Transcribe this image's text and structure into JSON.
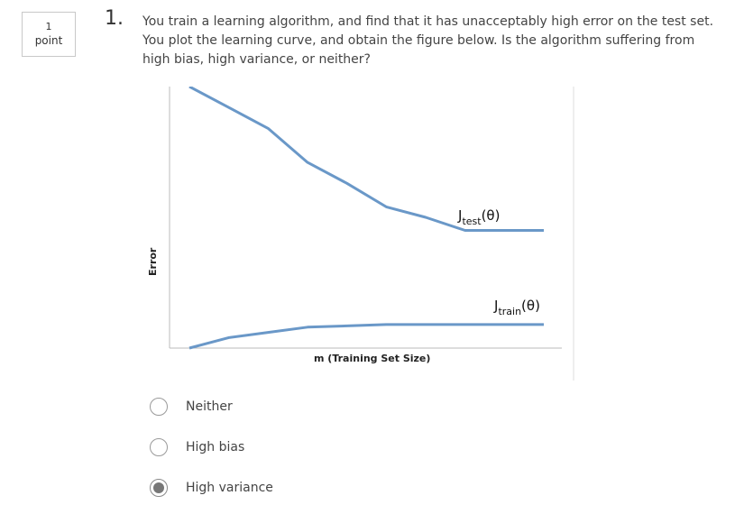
{
  "points": {
    "value": "1",
    "label": "point"
  },
  "question": {
    "number": "1.",
    "text": "You train a learning algorithm, and find that it has unacceptably high error on the test set. You plot the learning curve, and obtain the figure below. Is the algorithm suffering from high bias, high variance, or neither?"
  },
  "figure": {
    "ylabel": "Error",
    "xlabel": "m (Training Set Size)",
    "line_color": "#6a98c8",
    "test_label": {
      "main": "J",
      "sub": "test",
      "arg": "(θ)"
    },
    "train_label": {
      "main": "J",
      "sub": "train",
      "arg": "(θ)"
    }
  },
  "chart_data": {
    "type": "line",
    "xlabel": "m (Training Set Size)",
    "ylabel": "Error",
    "x": [
      0,
      1,
      2,
      3,
      4,
      5,
      6,
      7,
      8,
      9
    ],
    "series": [
      {
        "name": "Jtest(θ)",
        "values": [
          100,
          92,
          84,
          71,
          63,
          54,
          50,
          45,
          45,
          45
        ]
      },
      {
        "name": "Jtrain(θ)",
        "values": [
          0,
          4,
          6,
          8,
          8.5,
          9,
          9,
          9,
          9,
          9
        ]
      }
    ],
    "ylim": [
      0,
      100
    ],
    "grid": false
  },
  "options": [
    {
      "label": "Neither",
      "checked": false
    },
    {
      "label": "High bias",
      "checked": false
    },
    {
      "label": "High variance",
      "checked": true
    }
  ]
}
